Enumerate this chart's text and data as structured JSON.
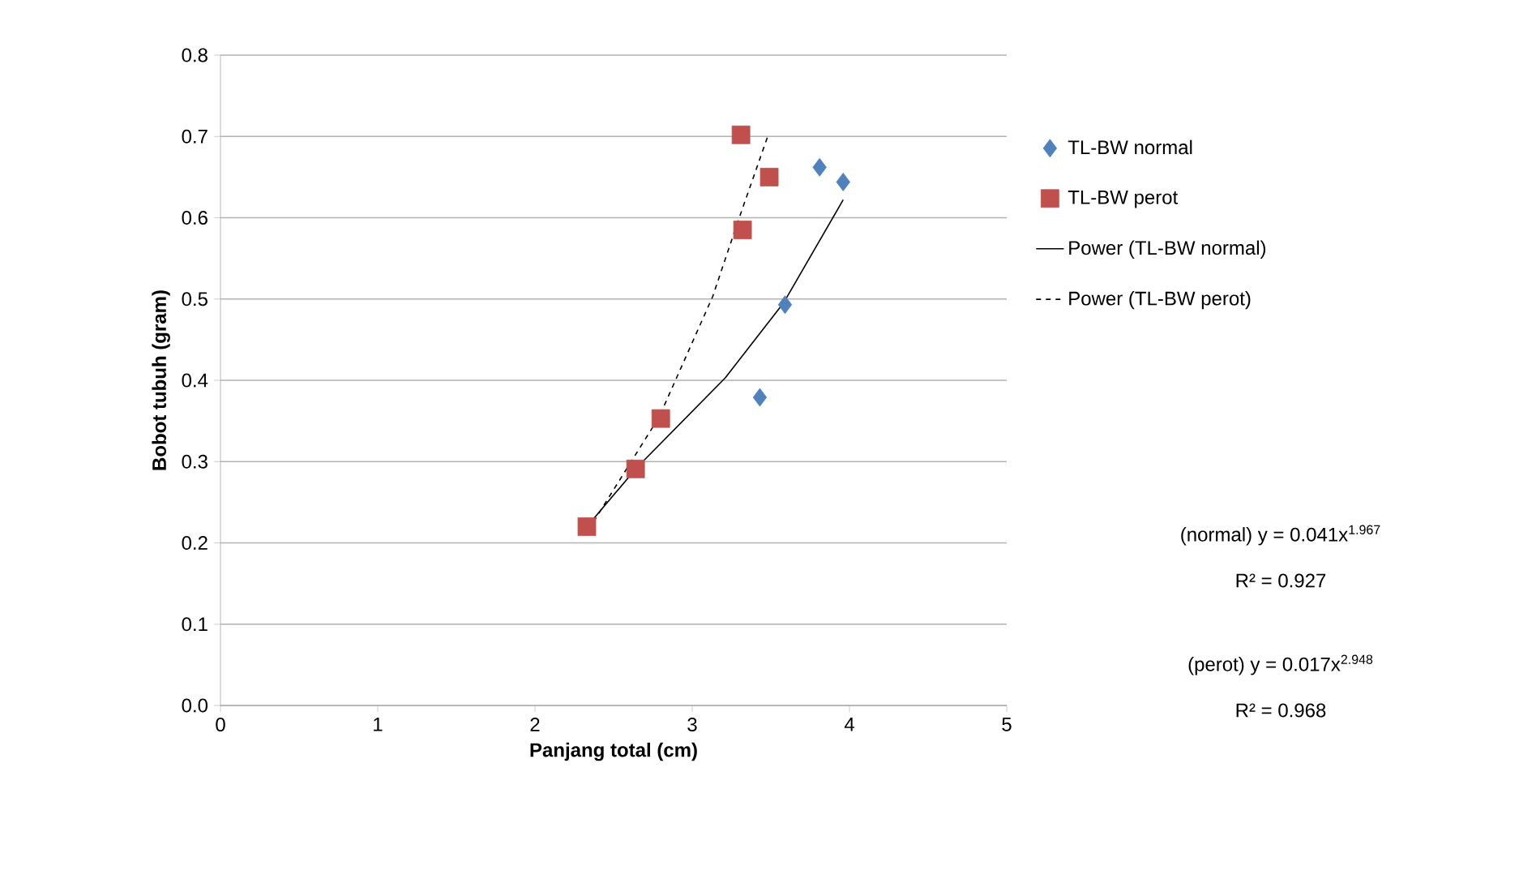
{
  "chart_data": {
    "type": "scatter",
    "xlabel": "Panjang total (cm)",
    "ylabel": "Bobot tubuh (gram)",
    "xlim": [
      0,
      5
    ],
    "xticks": [
      0,
      1,
      2,
      3,
      4,
      5
    ],
    "ylim": [
      0,
      0.8
    ],
    "yticks": [
      {
        "value": 0,
        "label": "0.0"
      },
      {
        "value": 0.1,
        "label": "0.1"
      },
      {
        "value": 0.2,
        "label": "0.2"
      },
      {
        "value": 0.3,
        "label": "0.3"
      },
      {
        "value": 0.4,
        "label": "0.4"
      },
      {
        "value": 0.5,
        "label": "0.5"
      },
      {
        "value": 0.6,
        "label": "0.6"
      },
      {
        "value": 0.7,
        "label": "0.7"
      },
      {
        "value": 0.8,
        "label": "0.8"
      }
    ],
    "grid": "y",
    "legend": "right",
    "series": [
      {
        "name": "TL-BW normal",
        "marker": "diamond",
        "color": "#4f81bd",
        "x": [
          3.43,
          3.59,
          3.81,
          3.96
        ],
        "values": [
          0.379,
          0.493,
          0.662,
          0.644
        ]
      },
      {
        "name": "TL-BW perot",
        "marker": "square",
        "color": "#c0504d",
        "x": [
          2.33,
          2.64,
          2.8,
          3.32,
          3.49,
          3.31
        ],
        "values": [
          0.22,
          0.291,
          0.353,
          0.585,
          0.65,
          0.702
        ]
      },
      {
        "name": "Power (TL-BW normal)",
        "type": "line",
        "marker": "none",
        "line_style": "solid",
        "color": "#000000",
        "x": [
          2.33,
          2.65,
          3.21,
          3.58,
          3.96
        ],
        "values": [
          0.22,
          0.293,
          0.403,
          0.495,
          0.622
        ]
      },
      {
        "name": "Power (TL-BW perot)",
        "type": "line",
        "marker": "none",
        "line_style": "dashed",
        "color": "#000000",
        "x": [
          2.34,
          2.79,
          3.13,
          3.29,
          3.48
        ],
        "values": [
          0.216,
          0.355,
          0.503,
          0.595,
          0.7
        ]
      }
    ],
    "annotations": [
      "(normal) y = 0.041x$^{1.967}$",
      "R² = 0.927",
      "(perot) y = 0.017x$^{2.948}$",
      "R² = 0.968"
    ]
  }
}
